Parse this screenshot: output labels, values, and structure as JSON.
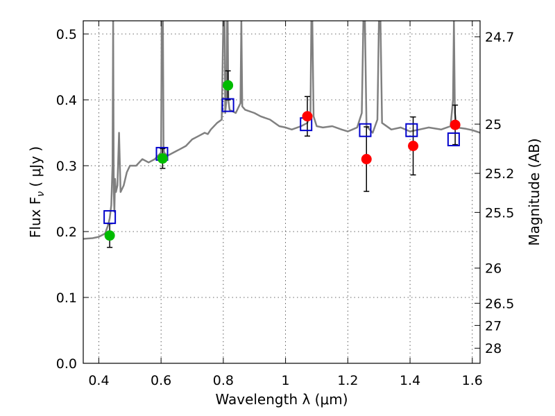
{
  "chart_data": {
    "type": "scatter",
    "title": "",
    "xlabel": "Wavelength  λ (μm)",
    "ylabel": "Flux  F",
    "ylabel_sub": "ν",
    "ylabel_unit": "  ( μJy )",
    "ylabel_right": "Magnitude (AB)",
    "xlim": [
      0.35,
      1.625
    ],
    "ylim": [
      0.0,
      0.52
    ],
    "grid": true,
    "x_ticks": [
      {
        "value": 0.4,
        "label": "0.4"
      },
      {
        "value": 0.6,
        "label": "0.6"
      },
      {
        "value": 0.8,
        "label": "0.8"
      },
      {
        "value": 1.0,
        "label": "1"
      },
      {
        "value": 1.2,
        "label": "1.2"
      },
      {
        "value": 1.4,
        "label": "1.4"
      },
      {
        "value": 1.6,
        "label": "1.6"
      }
    ],
    "y_ticks": [
      {
        "value": 0.0,
        "label": "0.0"
      },
      {
        "value": 0.1,
        "label": "0.1"
      },
      {
        "value": 0.2,
        "label": "0.2"
      },
      {
        "value": 0.3,
        "label": "0.3"
      },
      {
        "value": 0.4,
        "label": "0.4"
      },
      {
        "value": 0.5,
        "label": "0.5"
      }
    ],
    "right_ticks": [
      {
        "flux": 0.4958,
        "label": "24.7"
      },
      {
        "flux": 0.3631,
        "label": "25"
      },
      {
        "flux": 0.2884,
        "label": "25.2"
      },
      {
        "flux": 0.2291,
        "label": "25.5"
      },
      {
        "flux": 0.1445,
        "label": "26"
      },
      {
        "flux": 0.0912,
        "label": "26.5"
      },
      {
        "flux": 0.0575,
        "label": "27"
      },
      {
        "flux": 0.0229,
        "label": "28"
      }
    ],
    "series": [
      {
        "type": "line",
        "color": "#808080",
        "x": [
          0.35,
          0.38,
          0.4,
          0.42,
          0.43,
          0.435,
          0.44,
          0.444,
          0.446,
          0.448,
          0.45,
          0.452,
          0.455,
          0.46,
          0.465,
          0.47,
          0.48,
          0.49,
          0.5,
          0.52,
          0.54,
          0.56,
          0.58,
          0.6,
          0.602,
          0.604,
          0.606,
          0.608,
          0.61,
          0.62,
          0.64,
          0.66,
          0.68,
          0.7,
          0.72,
          0.74,
          0.75,
          0.76,
          0.78,
          0.795,
          0.8,
          0.802,
          0.804,
          0.806,
          0.81,
          0.812,
          0.814,
          0.816,
          0.82,
          0.84,
          0.855,
          0.858,
          0.861,
          0.87,
          0.9,
          0.92,
          0.95,
          0.98,
          1.0,
          1.02,
          1.05,
          1.07,
          1.08,
          1.083,
          1.086,
          1.09,
          1.1,
          1.12,
          1.15,
          1.18,
          1.2,
          1.23,
          1.245,
          1.25,
          1.255,
          1.26,
          1.28,
          1.295,
          1.3,
          1.305,
          1.31,
          1.34,
          1.37,
          1.4,
          1.43,
          1.46,
          1.5,
          1.53,
          1.538,
          1.541,
          1.544,
          1.55,
          1.58,
          1.6,
          1.625
        ],
        "y": [
          0.189,
          0.19,
          0.192,
          0.197,
          0.21,
          0.22,
          0.24,
          0.3,
          0.52,
          0.26,
          0.23,
          0.28,
          0.26,
          0.27,
          0.35,
          0.26,
          0.27,
          0.29,
          0.3,
          0.3,
          0.31,
          0.305,
          0.31,
          0.32,
          0.52,
          0.52,
          0.52,
          0.33,
          0.32,
          0.315,
          0.32,
          0.325,
          0.33,
          0.34,
          0.345,
          0.35,
          0.348,
          0.355,
          0.365,
          0.37,
          0.52,
          0.52,
          0.52,
          0.38,
          0.4,
          0.52,
          0.52,
          0.4,
          0.385,
          0.38,
          0.395,
          0.52,
          0.39,
          0.385,
          0.38,
          0.375,
          0.37,
          0.36,
          0.358,
          0.355,
          0.36,
          0.365,
          0.38,
          0.52,
          0.52,
          0.375,
          0.36,
          0.358,
          0.36,
          0.355,
          0.352,
          0.358,
          0.38,
          0.52,
          0.52,
          0.36,
          0.35,
          0.37,
          0.52,
          0.52,
          0.365,
          0.355,
          0.358,
          0.352,
          0.355,
          0.358,
          0.355,
          0.36,
          0.4,
          0.52,
          0.38,
          0.358,
          0.356,
          0.354,
          0.35
        ]
      },
      {
        "type": "open-square",
        "color": "#0000cc",
        "x": [
          0.435,
          0.603,
          0.815,
          1.066,
          1.256,
          1.405,
          1.54
        ],
        "y": [
          0.222,
          0.318,
          0.392,
          0.363,
          0.354,
          0.354,
          0.34
        ]
      },
      {
        "type": "filled-circle",
        "color": "#00bb00",
        "x": [
          0.435,
          0.605,
          0.815
        ],
        "y": [
          0.194,
          0.311,
          0.422
        ],
        "err_low": [
          0.018,
          0.015,
          0.022
        ],
        "err_high": [
          0.018,
          0.015,
          0.022
        ]
      },
      {
        "type": "filled-circle",
        "color": "#ff0000",
        "x": [
          1.07,
          1.26,
          1.41,
          1.545
        ],
        "y": [
          0.375,
          0.31,
          0.33,
          0.362
        ],
        "err_low": [
          0.03,
          0.049,
          0.044,
          0.03
        ],
        "err_high": [
          0.03,
          0.049,
          0.044,
          0.03
        ]
      }
    ]
  }
}
